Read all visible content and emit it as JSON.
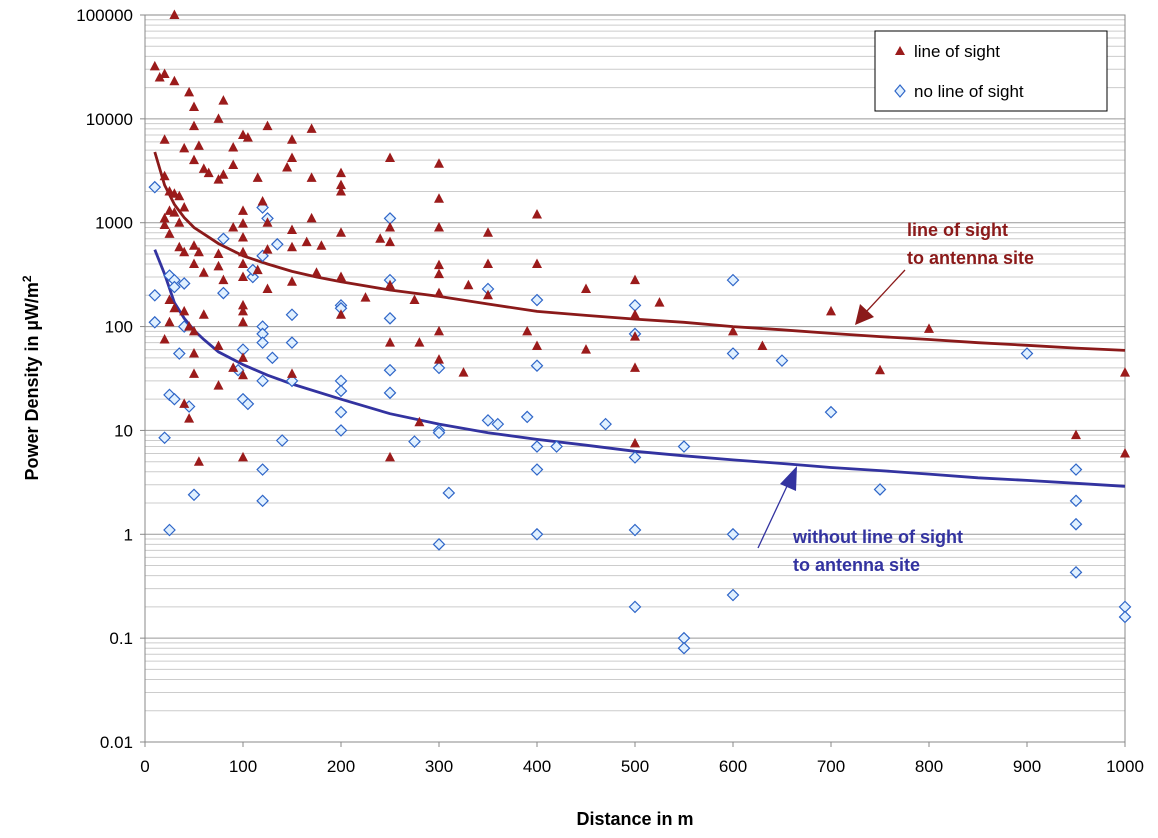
{
  "chart_data": {
    "type": "scatter",
    "xlabel": "Distance in m",
    "ylabel_main": "Power Density in µW/m",
    "ylabel_sup": "2",
    "xlim": [
      0,
      1000
    ],
    "ylim": [
      0.01,
      100000
    ],
    "y_scale": "log",
    "x_ticks": [
      "0",
      "100",
      "200",
      "300",
      "400",
      "500",
      "600",
      "700",
      "800",
      "900",
      "1000"
    ],
    "y_ticks": [
      "0.01",
      "0.1",
      "1",
      "10",
      "100",
      "1000",
      "10000",
      "100000"
    ],
    "grid": true,
    "legend_position": "top-right",
    "legend": [
      {
        "label": "line of sight",
        "marker": "triangle",
        "color": "#9B1B1B"
      },
      {
        "label": "no line of sight",
        "marker": "diamond",
        "color": "#2F66C8"
      }
    ],
    "annotations": [
      {
        "line1": "line of sight",
        "line2": "to antenna site",
        "color": "#8B1A1A"
      },
      {
        "line1": "without line of sight",
        "line2": "to antenna site",
        "color": "#3333A0"
      }
    ],
    "series": [
      {
        "name": "line of sight",
        "marker": "triangle",
        "color": "#9B1B1B",
        "points": [
          [
            30,
            100000
          ],
          [
            10,
            32000
          ],
          [
            15,
            25000
          ],
          [
            20,
            27000
          ],
          [
            30,
            23000
          ],
          [
            45,
            18000
          ],
          [
            50,
            13000
          ],
          [
            50,
            8500
          ],
          [
            75,
            10000
          ],
          [
            80,
            15000
          ],
          [
            20,
            6300
          ],
          [
            40,
            5200
          ],
          [
            50,
            4000
          ],
          [
            55,
            5500
          ],
          [
            60,
            3300
          ],
          [
            65,
            3000
          ],
          [
            75,
            2600
          ],
          [
            80,
            2900
          ],
          [
            90,
            3600
          ],
          [
            90,
            5300
          ],
          [
            100,
            7000
          ],
          [
            105,
            6600
          ],
          [
            20,
            2800
          ],
          [
            25,
            2000
          ],
          [
            30,
            1900
          ],
          [
            35,
            1800
          ],
          [
            40,
            1400
          ],
          [
            25,
            1300
          ],
          [
            30,
            1250
          ],
          [
            20,
            1100
          ],
          [
            20,
            950
          ],
          [
            25,
            780
          ],
          [
            35,
            1000
          ],
          [
            35,
            580
          ],
          [
            40,
            520
          ],
          [
            50,
            600
          ],
          [
            55,
            520
          ],
          [
            50,
            400
          ],
          [
            60,
            330
          ],
          [
            75,
            380
          ],
          [
            75,
            500
          ],
          [
            90,
            900
          ],
          [
            100,
            1300
          ],
          [
            100,
            980
          ],
          [
            100,
            720
          ],
          [
            100,
            520
          ],
          [
            100,
            400
          ],
          [
            100,
            300
          ],
          [
            100,
            160
          ],
          [
            100,
            140
          ],
          [
            100,
            110
          ],
          [
            115,
            2700
          ],
          [
            120,
            1600
          ],
          [
            125,
            8500
          ],
          [
            125,
            1000
          ],
          [
            145,
            3400
          ],
          [
            150,
            4200
          ],
          [
            150,
            6300
          ],
          [
            150,
            850
          ],
          [
            150,
            580
          ],
          [
            125,
            550
          ],
          [
            115,
            350
          ],
          [
            125,
            230
          ],
          [
            150,
            270
          ],
          [
            165,
            650
          ],
          [
            170,
            1100
          ],
          [
            170,
            8000
          ],
          [
            170,
            2700
          ],
          [
            175,
            330
          ],
          [
            180,
            600
          ],
          [
            80,
            280
          ],
          [
            20,
            75
          ],
          [
            25,
            180
          ],
          [
            25,
            110
          ],
          [
            30,
            150
          ],
          [
            40,
            140
          ],
          [
            45,
            100
          ],
          [
            50,
            90
          ],
          [
            60,
            130
          ],
          [
            75,
            65
          ],
          [
            90,
            40
          ],
          [
            100,
            50
          ],
          [
            100,
            34
          ],
          [
            150,
            35
          ],
          [
            50,
            55
          ],
          [
            50,
            35
          ],
          [
            75,
            27
          ],
          [
            40,
            18
          ],
          [
            45,
            13
          ],
          [
            55,
            5
          ],
          [
            100,
            5.5
          ],
          [
            200,
            3000
          ],
          [
            200,
            2300
          ],
          [
            200,
            2000
          ],
          [
            200,
            800
          ],
          [
            200,
            300
          ],
          [
            200,
            130
          ],
          [
            225,
            190
          ],
          [
            240,
            700
          ],
          [
            250,
            4200
          ],
          [
            250,
            900
          ],
          [
            250,
            650
          ],
          [
            250,
            250
          ],
          [
            250,
            70
          ],
          [
            250,
            5.5
          ],
          [
            275,
            180
          ],
          [
            280,
            70
          ],
          [
            280,
            12
          ],
          [
            300,
            3700
          ],
          [
            300,
            1700
          ],
          [
            300,
            900
          ],
          [
            300,
            390
          ],
          [
            300,
            320
          ],
          [
            300,
            210
          ],
          [
            300,
            90
          ],
          [
            300,
            48
          ],
          [
            325,
            36
          ],
          [
            330,
            250
          ],
          [
            350,
            800
          ],
          [
            350,
            400
          ],
          [
            350,
            200
          ],
          [
            390,
            90
          ],
          [
            400,
            1200
          ],
          [
            400,
            400
          ],
          [
            400,
            65
          ],
          [
            450,
            230
          ],
          [
            450,
            60
          ],
          [
            500,
            280
          ],
          [
            500,
            130
          ],
          [
            500,
            80
          ],
          [
            500,
            40
          ],
          [
            500,
            7.5
          ],
          [
            525,
            170
          ],
          [
            600,
            90
          ],
          [
            630,
            65
          ],
          [
            700,
            140
          ],
          [
            750,
            38
          ],
          [
            800,
            95
          ],
          [
            950,
            9
          ],
          [
            1000,
            36
          ],
          [
            1000,
            6
          ]
        ]
      },
      {
        "name": "no line of sight",
        "marker": "diamond",
        "color": "#2F66C8",
        "points": [
          [
            10,
            2200
          ],
          [
            10,
            200
          ],
          [
            10,
            110
          ],
          [
            20,
            8.5
          ],
          [
            25,
            1.1
          ],
          [
            25,
            22
          ],
          [
            30,
            20
          ],
          [
            25,
            310
          ],
          [
            30,
            280
          ],
          [
            30,
            240
          ],
          [
            40,
            260
          ],
          [
            35,
            55
          ],
          [
            40,
            100
          ],
          [
            45,
            17
          ],
          [
            50,
            2.4
          ],
          [
            80,
            700
          ],
          [
            80,
            210
          ],
          [
            95,
            38
          ],
          [
            100,
            60
          ],
          [
            100,
            20
          ],
          [
            105,
            18
          ],
          [
            110,
            300
          ],
          [
            110,
            350
          ],
          [
            120,
            1400
          ],
          [
            125,
            1100
          ],
          [
            120,
            480
          ],
          [
            120,
            100
          ],
          [
            120,
            85
          ],
          [
            120,
            70
          ],
          [
            120,
            30
          ],
          [
            120,
            4.2
          ],
          [
            120,
            2.1
          ],
          [
            130,
            50
          ],
          [
            135,
            620
          ],
          [
            140,
            8
          ],
          [
            150,
            130
          ],
          [
            150,
            70
          ],
          [
            150,
            30
          ],
          [
            200,
            160
          ],
          [
            200,
            150
          ],
          [
            200,
            30
          ],
          [
            200,
            24
          ],
          [
            200,
            15
          ],
          [
            200,
            10
          ],
          [
            250,
            1100
          ],
          [
            250,
            280
          ],
          [
            250,
            120
          ],
          [
            250,
            38
          ],
          [
            250,
            23
          ],
          [
            275,
            7.8
          ],
          [
            300,
            40
          ],
          [
            300,
            10
          ],
          [
            300,
            9.5
          ],
          [
            300,
            0.8
          ],
          [
            310,
            2.5
          ],
          [
            350,
            230
          ],
          [
            350,
            12.5
          ],
          [
            360,
            11.5
          ],
          [
            390,
            13.5
          ],
          [
            400,
            180
          ],
          [
            400,
            42
          ],
          [
            400,
            7
          ],
          [
            400,
            4.2
          ],
          [
            400,
            1
          ],
          [
            420,
            7
          ],
          [
            470,
            11.5
          ],
          [
            500,
            160
          ],
          [
            500,
            85
          ],
          [
            500,
            5.5
          ],
          [
            500,
            1.1
          ],
          [
            500,
            0.2
          ],
          [
            550,
            7
          ],
          [
            550,
            0.1
          ],
          [
            550,
            0.08
          ],
          [
            600,
            280
          ],
          [
            600,
            55
          ],
          [
            600,
            1
          ],
          [
            600,
            0.26
          ],
          [
            650,
            47
          ],
          [
            700,
            15
          ],
          [
            750,
            2.7
          ],
          [
            900,
            55
          ],
          [
            950,
            4.2
          ],
          [
            950,
            2.1
          ],
          [
            950,
            1.25
          ],
          [
            950,
            0.43
          ],
          [
            1000,
            0.2
          ],
          [
            1000,
            0.16
          ]
        ]
      },
      {
        "name": "line of sight to antenna site",
        "type": "line",
        "color": "#8B1A1A",
        "points": [
          [
            10,
            4800
          ],
          [
            20,
            2300
          ],
          [
            30,
            1500
          ],
          [
            40,
            1120
          ],
          [
            50,
            900
          ],
          [
            60,
            780
          ],
          [
            75,
            630
          ],
          [
            100,
            480
          ],
          [
            125,
            400
          ],
          [
            150,
            340
          ],
          [
            175,
            300
          ],
          [
            200,
            270
          ],
          [
            250,
            225
          ],
          [
            300,
            195
          ],
          [
            350,
            165
          ],
          [
            400,
            140
          ],
          [
            450,
            128
          ],
          [
            500,
            118
          ],
          [
            550,
            110
          ],
          [
            600,
            100
          ],
          [
            650,
            93
          ],
          [
            700,
            86
          ],
          [
            750,
            80
          ],
          [
            800,
            75
          ],
          [
            850,
            70
          ],
          [
            900,
            66
          ],
          [
            950,
            62
          ],
          [
            1000,
            59
          ]
        ]
      },
      {
        "name": "without line of sight to antenna site",
        "type": "line",
        "color": "#3333A0",
        "points": [
          [
            10,
            550
          ],
          [
            20,
            320
          ],
          [
            30,
            170
          ],
          [
            40,
            120
          ],
          [
            50,
            92
          ],
          [
            60,
            75
          ],
          [
            75,
            57
          ],
          [
            100,
            43
          ],
          [
            125,
            34
          ],
          [
            150,
            28
          ],
          [
            200,
            20
          ],
          [
            250,
            14.5
          ],
          [
            300,
            11.5
          ],
          [
            350,
            9.5
          ],
          [
            400,
            8.2
          ],
          [
            450,
            7.2
          ],
          [
            500,
            6.3
          ],
          [
            550,
            5.7
          ],
          [
            600,
            5.2
          ],
          [
            650,
            4.8
          ],
          [
            700,
            4.4
          ],
          [
            750,
            4.1
          ],
          [
            800,
            3.8
          ],
          [
            850,
            3.5
          ],
          [
            900,
            3.3
          ],
          [
            950,
            3.1
          ],
          [
            1000,
            2.9
          ]
        ]
      }
    ]
  }
}
